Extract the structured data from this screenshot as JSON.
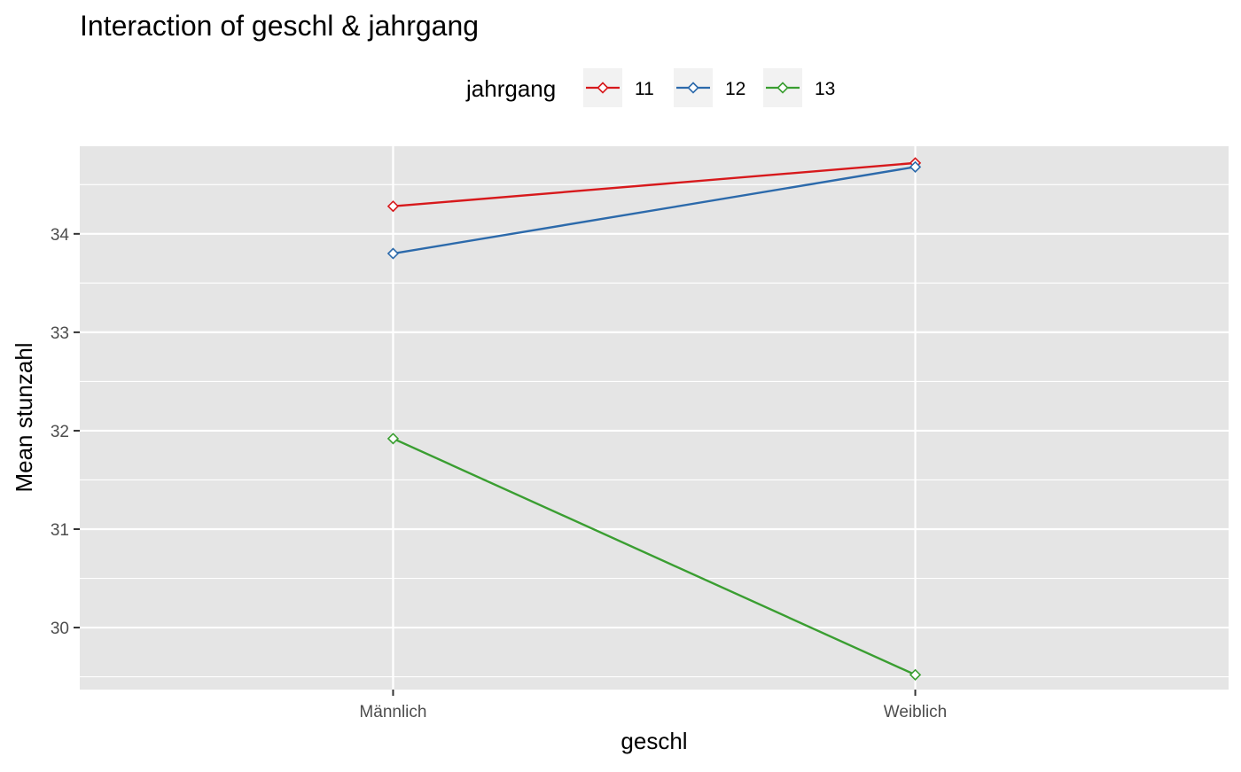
{
  "chart_data": {
    "type": "line",
    "title": "Interaction of geschl & jahrgang",
    "xlabel": "geschl",
    "ylabel": "Mean stunzahl",
    "categories": [
      "Männlich",
      "Weiblich"
    ],
    "yticks": [
      30,
      31,
      32,
      33,
      34
    ],
    "ylim": [
      29.37,
      34.89
    ],
    "grid": true,
    "legend": {
      "title": "jahrgang",
      "placement": "top"
    },
    "series": [
      {
        "name": "11",
        "color": "#d7191c",
        "values": [
          34.28,
          34.72
        ]
      },
      {
        "name": "12",
        "color": "#2c6aab",
        "values": [
          33.8,
          34.68
        ]
      },
      {
        "name": "13",
        "color": "#3a9e31",
        "values": [
          31.92,
          29.52
        ]
      }
    ],
    "marker": "diamond-open",
    "panel_background": "#e5e5e5",
    "grid_color": "#ffffff"
  }
}
